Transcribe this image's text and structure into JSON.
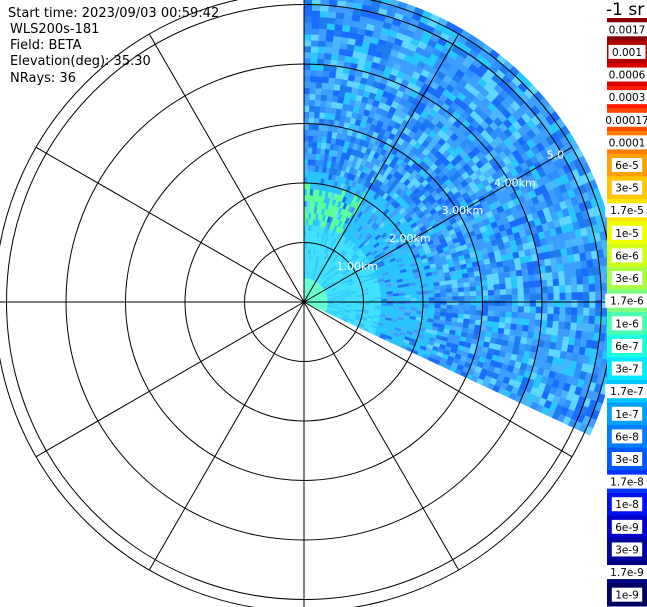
{
  "header": {
    "start_time": "Start time: 2023/09/03 00:59:42",
    "instrument": "WLS200s-181",
    "field": "Field: BETA",
    "elevation": "Elevation(deg): 35.30",
    "nrays": "NRays: 36"
  },
  "colorbar": {
    "units_label": "-1 sr",
    "entries": [
      {
        "label": "0.0017",
        "color": "#8b0000"
      },
      {
        "label": "0.001",
        "color": "#b00000"
      },
      {
        "label": "0.0006",
        "color": "#d80000"
      },
      {
        "label": "0.0003",
        "color": "#ff1a00"
      },
      {
        "label": "0.00017",
        "color": "#ff4a00"
      },
      {
        "label": "0.0001",
        "color": "#ff7a00"
      },
      {
        "label": "6e-5",
        "color": "#ff9f00"
      },
      {
        "label": "3e-5",
        "color": "#ffc400"
      },
      {
        "label": "1.7e-5",
        "color": "#ffe600"
      },
      {
        "label": "1e-5",
        "color": "#f2ff00"
      },
      {
        "label": "6e-6",
        "color": "#d2ff1a"
      },
      {
        "label": "3e-6",
        "color": "#aaff40"
      },
      {
        "label": "1.7e-6",
        "color": "#80ff80"
      },
      {
        "label": "1e-6",
        "color": "#4cffb0"
      },
      {
        "label": "6e-7",
        "color": "#1affe0"
      },
      {
        "label": "3e-7",
        "color": "#00e8ff"
      },
      {
        "label": "1.7e-7",
        "color": "#00c4ff"
      },
      {
        "label": "1e-7",
        "color": "#00a0ff"
      },
      {
        "label": "6e-8",
        "color": "#007cff"
      },
      {
        "label": "3e-8",
        "color": "#0058ff"
      },
      {
        "label": "1.7e-8",
        "color": "#0032ff"
      },
      {
        "label": "1e-8",
        "color": "#0010f0"
      },
      {
        "label": "6e-9",
        "color": "#0000c8"
      },
      {
        "label": "3e-9",
        "color": "#0000a0"
      },
      {
        "label": "1.7e-9",
        "color": "#000080"
      },
      {
        "label": "1e-9",
        "color": "#000060"
      }
    ]
  },
  "chart_data": {
    "type": "ppi",
    "field": "BETA",
    "range_rings_km": [
      1,
      2,
      3,
      4,
      5
    ],
    "range_ring_labels": [
      "1.00km",
      "2.00km",
      "3.00km",
      "4.00km",
      "5.0"
    ],
    "max_range_km": 5.2,
    "azimuth_spokes_deg": [
      0,
      30,
      60,
      90,
      120,
      150,
      180,
      210,
      240,
      270,
      300,
      330
    ],
    "data_sector_deg": [
      0,
      115
    ],
    "nrays": 36,
    "elevation_deg": 35.3,
    "radial_profile": [
      {
        "range_km": 0.5,
        "beta": 3e-06
      },
      {
        "range_km": 1.0,
        "beta": 6e-07
      },
      {
        "range_km": 2.0,
        "beta": 3e-07
      },
      {
        "range_km": 3.0,
        "beta": 1.7e-07
      },
      {
        "range_km": 4.0,
        "beta": 1e-07
      },
      {
        "range_km": 5.0,
        "beta": 6e-08
      }
    ]
  }
}
